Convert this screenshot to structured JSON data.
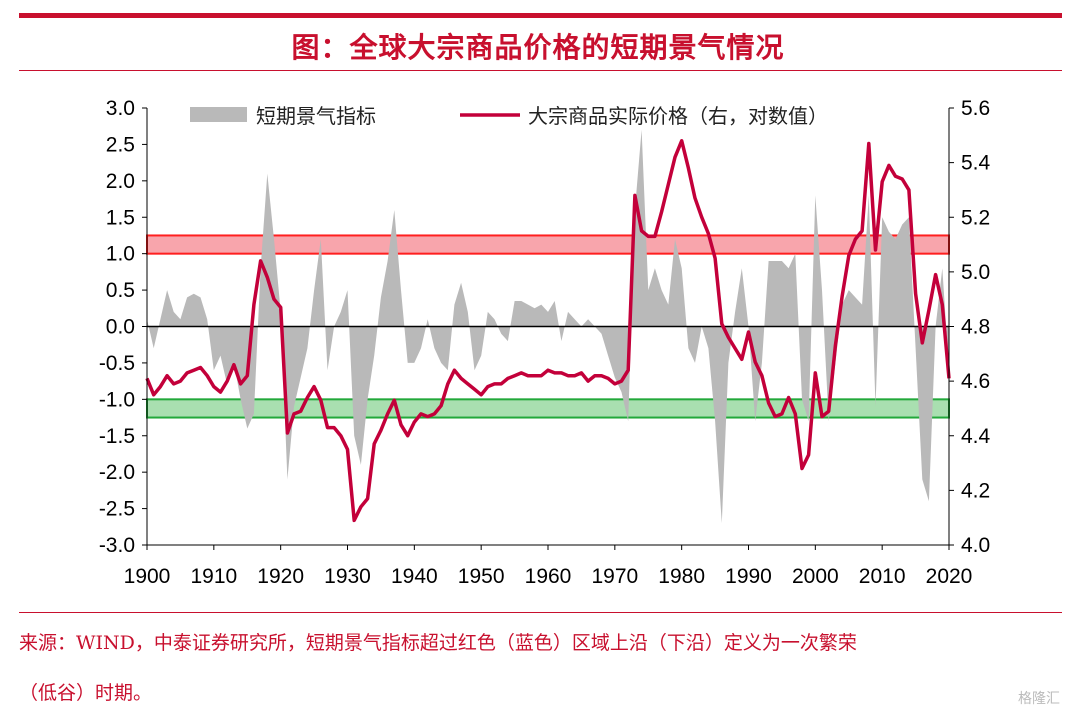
{
  "header": {
    "title": "图：全球大宗商品价格的短期景气情况"
  },
  "footer": {
    "source_line1": "来源：WIND，中泰证券研究所，短期景气指标超过红色（蓝色）区域上沿（下沿）定义为一次繁荣",
    "source_line2": "（低谷）时期。"
  },
  "watermark": {
    "text": "格隆汇"
  },
  "colors": {
    "accent": "#c8102e",
    "area": "#b9b9b9",
    "line": "#c3003a",
    "red_band_fill": "#f8a5ac",
    "red_band_stroke": "#ff1f1f",
    "green_band_fill": "#a9dfb0",
    "green_band_stroke": "#22a83a"
  },
  "chart_data": {
    "type": "area+line",
    "title": "",
    "xlabel": "",
    "ylabel_left": "",
    "ylabel_right": "",
    "x_ticks": [
      "1900",
      "1910",
      "1920",
      "1930",
      "1940",
      "1950",
      "1960",
      "1970",
      "1980",
      "1990",
      "2000",
      "2010",
      "2020"
    ],
    "left_axis": {
      "range": [
        -3.0,
        3.0
      ],
      "ticks": [
        "3.0",
        "2.5",
        "2.0",
        "1.5",
        "1.0",
        "0.5",
        "0.0",
        "-0.5",
        "-1.0",
        "-1.5",
        "-2.0",
        "-2.5",
        "-3.0"
      ]
    },
    "right_axis": {
      "range": [
        4.0,
        5.6
      ],
      "ticks": [
        "5.6",
        "5.4",
        "5.2",
        "5.0",
        "4.8",
        "4.6",
        "4.4",
        "4.2",
        "4.0"
      ]
    },
    "legend": {
      "placement": "top",
      "items": [
        {
          "label": "短期景气指标",
          "kind": "area"
        },
        {
          "label": "大宗商品实际价格（右，对数值）",
          "kind": "line"
        }
      ]
    },
    "bands": [
      {
        "name": "upper",
        "left_range": [
          1.0,
          1.25
        ]
      },
      {
        "name": "lower",
        "left_range": [
          -1.25,
          -1.0
        ]
      }
    ],
    "series": [
      {
        "name": "短期景气指标",
        "axis": "left",
        "type": "area",
        "x": [
          1900,
          1901,
          1902,
          1903,
          1904,
          1905,
          1906,
          1907,
          1908,
          1909,
          1910,
          1911,
          1912,
          1913,
          1914,
          1915,
          1916,
          1917,
          1918,
          1919,
          1920,
          1921,
          1922,
          1923,
          1924,
          1925,
          1926,
          1927,
          1928,
          1929,
          1930,
          1931,
          1932,
          1933,
          1934,
          1935,
          1936,
          1937,
          1938,
          1939,
          1940,
          1941,
          1942,
          1943,
          1944,
          1945,
          1946,
          1947,
          1948,
          1949,
          1950,
          1951,
          1952,
          1953,
          1954,
          1955,
          1956,
          1957,
          1958,
          1959,
          1960,
          1961,
          1962,
          1963,
          1964,
          1965,
          1966,
          1967,
          1968,
          1969,
          1970,
          1971,
          1972,
          1973,
          1974,
          1975,
          1976,
          1977,
          1978,
          1979,
          1980,
          1981,
          1982,
          1983,
          1984,
          1985,
          1986,
          1987,
          1988,
          1989,
          1990,
          1991,
          1992,
          1993,
          1994,
          1995,
          1996,
          1997,
          1998,
          1999,
          2000,
          2001,
          2002,
          2003,
          2004,
          2005,
          2006,
          2007,
          2008,
          2009,
          2010,
          2011,
          2012,
          2013,
          2014,
          2015,
          2016,
          2017,
          2018,
          2019,
          2020
        ],
        "values": [
          0.1,
          -0.3,
          0.1,
          0.5,
          0.2,
          0.1,
          0.4,
          0.45,
          0.4,
          0.1,
          -0.6,
          -0.4,
          -0.8,
          -0.5,
          -1.0,
          -1.4,
          -1.2,
          0.8,
          2.1,
          1.2,
          0.2,
          -2.1,
          -1.1,
          -0.7,
          -0.3,
          0.5,
          1.2,
          -0.6,
          0.0,
          0.2,
          0.5,
          -1.5,
          -1.9,
          -1.0,
          -0.4,
          0.4,
          0.9,
          1.6,
          0.5,
          -0.5,
          -0.5,
          -0.3,
          0.1,
          -0.3,
          -0.5,
          -0.6,
          0.3,
          0.6,
          0.2,
          -0.6,
          -0.4,
          0.2,
          0.1,
          -0.1,
          -0.2,
          0.35,
          0.35,
          0.3,
          0.25,
          0.3,
          0.2,
          0.35,
          -0.2,
          0.2,
          0.1,
          0.0,
          0.1,
          0.0,
          -0.1,
          -0.4,
          -0.7,
          -0.9,
          -1.3,
          1.6,
          2.7,
          0.5,
          0.8,
          0.5,
          0.3,
          1.2,
          0.8,
          -0.3,
          -0.5,
          0.0,
          -0.3,
          -1.3,
          -2.7,
          -0.5,
          0.2,
          0.8,
          0.0,
          -1.3,
          -0.5,
          0.9,
          0.9,
          0.9,
          0.8,
          1.0,
          -1.0,
          -1.3,
          1.8,
          0.5,
          -1.3,
          -0.5,
          0.3,
          0.5,
          0.4,
          0.3,
          1.8,
          -1.1,
          1.5,
          1.3,
          1.2,
          1.4,
          1.5,
          -0.3,
          -2.1,
          -2.4,
          0.0,
          0.8,
          -0.6
        ],
        "color": "#b9b9b9"
      },
      {
        "name": "大宗商品实际价格（右，对数值）",
        "axis": "right",
        "type": "line",
        "x": [
          1900,
          1901,
          1902,
          1903,
          1904,
          1905,
          1906,
          1907,
          1908,
          1909,
          1910,
          1911,
          1912,
          1913,
          1914,
          1915,
          1916,
          1917,
          1918,
          1919,
          1920,
          1921,
          1922,
          1923,
          1924,
          1925,
          1926,
          1927,
          1928,
          1929,
          1930,
          1931,
          1932,
          1933,
          1934,
          1935,
          1936,
          1937,
          1938,
          1939,
          1940,
          1941,
          1942,
          1943,
          1944,
          1945,
          1946,
          1947,
          1948,
          1949,
          1950,
          1951,
          1952,
          1953,
          1954,
          1955,
          1956,
          1957,
          1958,
          1959,
          1960,
          1961,
          1962,
          1963,
          1964,
          1965,
          1966,
          1967,
          1968,
          1969,
          1970,
          1971,
          1972,
          1973,
          1974,
          1975,
          1976,
          1977,
          1978,
          1979,
          1980,
          1981,
          1982,
          1983,
          1984,
          1985,
          1986,
          1987,
          1988,
          1989,
          1990,
          1991,
          1992,
          1993,
          1994,
          1995,
          1996,
          1997,
          1998,
          1999,
          2000,
          2001,
          2002,
          2003,
          2004,
          2005,
          2006,
          2007,
          2008,
          2009,
          2010,
          2011,
          2012,
          2013,
          2014,
          2015,
          2016,
          2017,
          2018,
          2019,
          2020
        ],
        "values": [
          4.61,
          4.55,
          4.58,
          4.62,
          4.59,
          4.6,
          4.63,
          4.64,
          4.65,
          4.62,
          4.58,
          4.56,
          4.6,
          4.66,
          4.59,
          4.62,
          4.88,
          5.04,
          4.98,
          4.9,
          4.87,
          4.41,
          4.48,
          4.49,
          4.54,
          4.58,
          4.53,
          4.43,
          4.43,
          4.4,
          4.35,
          4.09,
          4.14,
          4.17,
          4.37,
          4.42,
          4.48,
          4.53,
          4.44,
          4.4,
          4.45,
          4.48,
          4.47,
          4.48,
          4.51,
          4.59,
          4.64,
          4.61,
          4.59,
          4.57,
          4.55,
          4.58,
          4.59,
          4.59,
          4.61,
          4.62,
          4.63,
          4.62,
          4.62,
          4.62,
          4.64,
          4.63,
          4.63,
          4.62,
          4.62,
          4.63,
          4.6,
          4.62,
          4.62,
          4.61,
          4.59,
          4.6,
          4.64,
          5.28,
          5.15,
          5.13,
          5.13,
          5.22,
          5.32,
          5.42,
          5.48,
          5.38,
          5.27,
          5.2,
          5.14,
          5.05,
          4.81,
          4.76,
          4.72,
          4.68,
          4.78,
          4.67,
          4.62,
          4.52,
          4.47,
          4.48,
          4.54,
          4.48,
          4.28,
          4.33,
          4.63,
          4.47,
          4.49,
          4.73,
          4.91,
          5.06,
          5.12,
          5.15,
          5.47,
          5.08,
          5.33,
          5.39,
          5.35,
          5.34,
          5.3,
          4.92,
          4.74,
          4.86,
          4.99,
          4.88,
          4.61
        ],
        "color": "#c3003a"
      }
    ]
  }
}
